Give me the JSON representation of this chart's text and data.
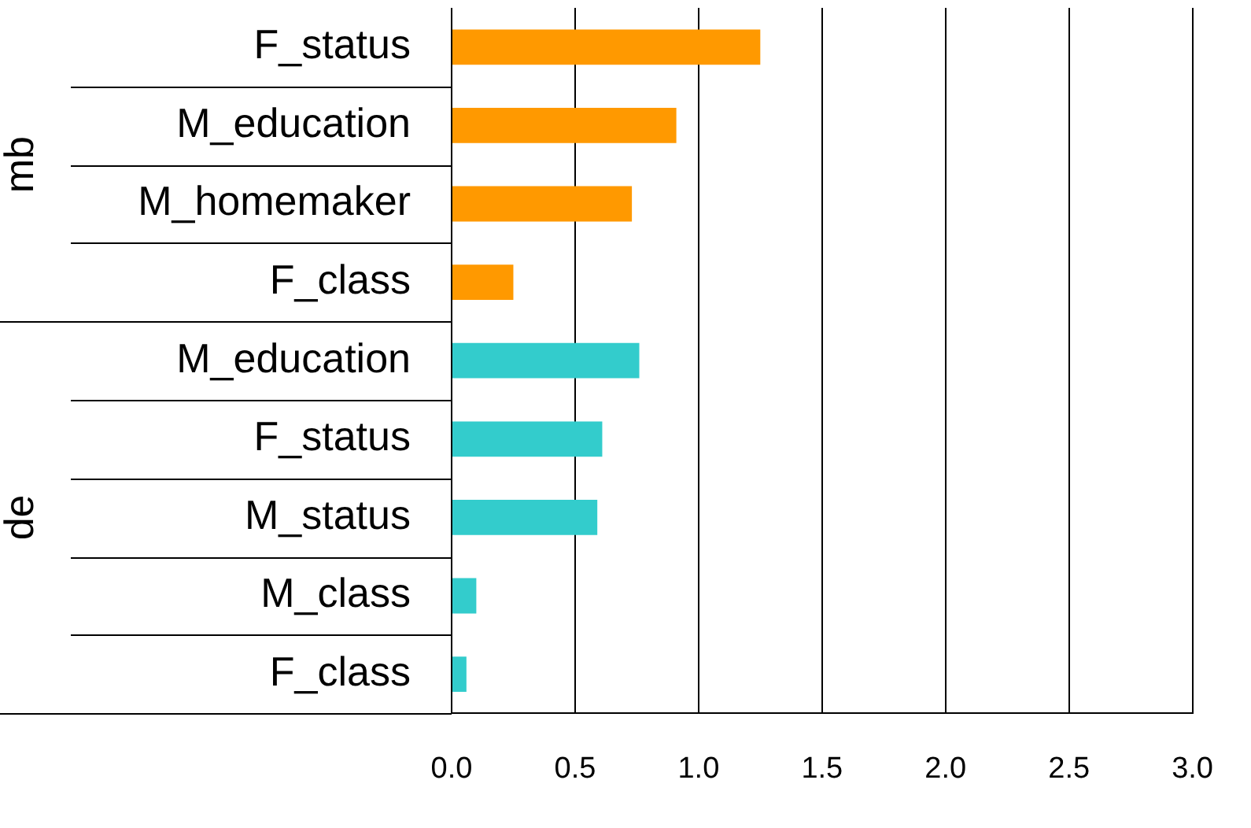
{
  "chart_data": {
    "type": "bar",
    "orientation": "horizontal",
    "stacked": true,
    "categories": [
      "F_status",
      "M_education",
      "M_homemaker",
      "F_class",
      "M_education",
      "F_status",
      "M_status",
      "M_class",
      "F_class"
    ],
    "series": [
      {
        "color": "#ff9900",
        "values": [
          1.25,
          0.91,
          0.73,
          0.25,
          null,
          null,
          null,
          null,
          null
        ]
      },
      {
        "color": "#33cccc",
        "values": [
          null,
          null,
          null,
          null,
          0.76,
          0.61,
          0.59,
          0.1,
          0.06
        ]
      }
    ],
    "xlim": [
      0,
      3
    ],
    "xticks": [
      {
        "value": 0,
        "label": "0.0"
      },
      0.5,
      {
        "value": 1,
        "label": "1.0"
      },
      1.5,
      {
        "value": 2,
        "label": "2.0"
      },
      2.5,
      {
        "value": 3,
        "label": "3.0"
      }
    ],
    "annotations": [
      "mb",
      "de"
    ],
    "grid": "x",
    "legend": false
  }
}
